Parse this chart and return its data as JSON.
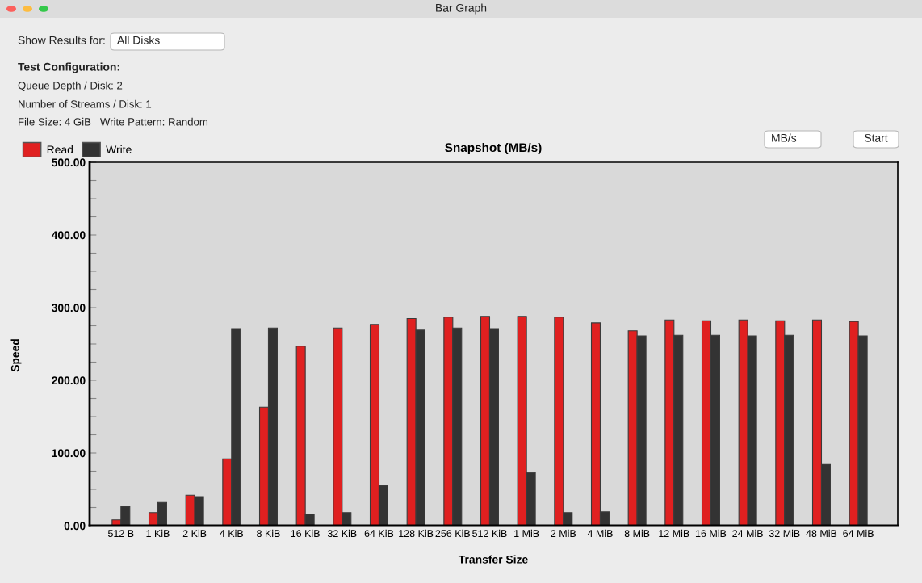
{
  "chart_data": {
    "type": "bar",
    "title": "Snapshot (MB/s)",
    "xlabel": "Transfer Size",
    "ylabel": "Speed",
    "categories": [
      "512 B",
      "1 KiB",
      "2 KiB",
      "4 KiB",
      "8 KiB",
      "16 KiB",
      "32 KiB",
      "64 KiB",
      "128 KiB",
      "256 KiB",
      "512 KiB",
      "1 MiB",
      "2 MiB",
      "4 MiB",
      "8 MiB",
      "12 MiB",
      "16 MiB",
      "24 MiB",
      "32 MiB",
      "48 MiB",
      "64 MiB"
    ],
    "series": [
      {
        "name": "Read",
        "color": "#e02020",
        "values": [
          8,
          18,
          42,
          92,
          163,
          247,
          272,
          277,
          285,
          287,
          288,
          288,
          287,
          279,
          268,
          283,
          282,
          283,
          282,
          283,
          281
        ]
      },
      {
        "name": "Write",
        "color": "#333333",
        "values": [
          26,
          32,
          40,
          271,
          272,
          16,
          18,
          55,
          269,
          272,
          271,
          73,
          18,
          19,
          261,
          262,
          262,
          261,
          262,
          84,
          261
        ]
      }
    ],
    "ylim": [
      0,
      500
    ],
    "yticks": [
      {
        "value": 0,
        "label": "0.00"
      },
      {
        "value": 25,
        "label": null
      },
      {
        "value": 50,
        "label": null
      },
      {
        "value": 75,
        "label": null
      },
      {
        "value": 100,
        "label": "100.00"
      },
      {
        "value": 125,
        "label": null
      },
      {
        "value": 150,
        "label": null
      },
      {
        "value": 175,
        "label": null
      },
      {
        "value": 200,
        "label": "200.00"
      },
      {
        "value": 225,
        "label": null
      },
      {
        "value": 250,
        "label": null
      },
      {
        "value": 275,
        "label": null
      },
      {
        "value": 300,
        "label": "300.00"
      },
      {
        "value": 325,
        "label": null
      },
      {
        "value": 350,
        "label": null
      },
      {
        "value": 375,
        "label": null
      },
      {
        "value": 400,
        "label": "400.00"
      },
      {
        "value": 425,
        "label": null
      },
      {
        "value": 450,
        "label": null
      },
      {
        "value": 475,
        "label": null
      },
      {
        "value": 500,
        "label": "500.00"
      }
    ],
    "grid": false,
    "legend": "top left",
    "annotations": [
      "Bar Graph",
      "Show Results for:",
      "All Disks",
      "Test Configuration:",
      "Queue Depth / Disk: 2",
      "Number of Streams / Disk: 1",
      "File Size: 4 GiB   Write Pattern: Random",
      "MB/s",
      "Start"
    ]
  }
}
